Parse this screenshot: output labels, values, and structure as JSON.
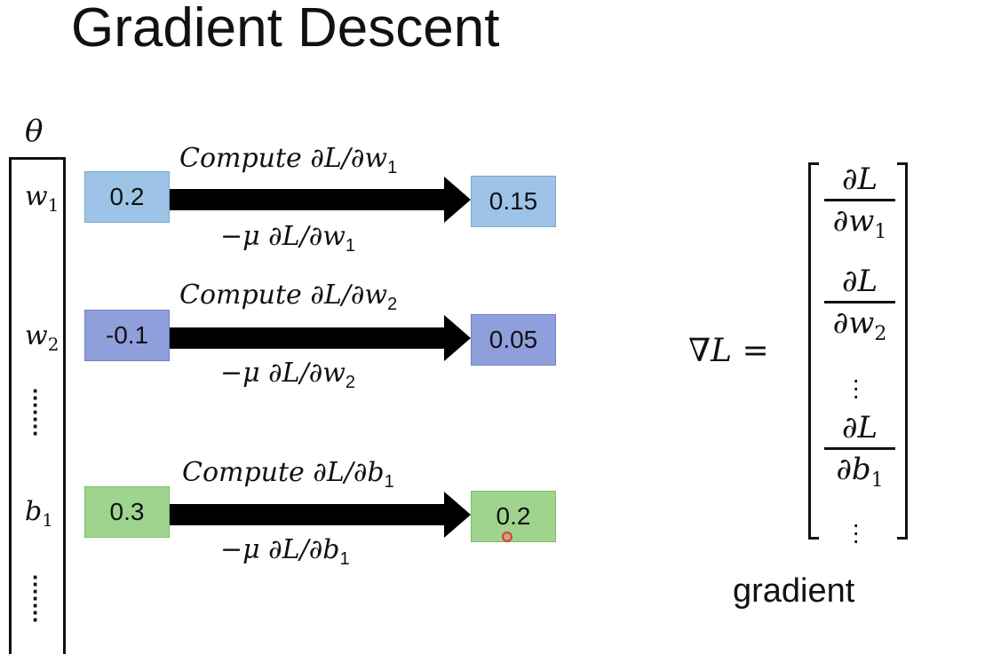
{
  "title": "Gradient Descent",
  "theta": "θ",
  "params": [
    {
      "sym": "w",
      "sub": "1"
    },
    {
      "sym": "w",
      "sub": "2"
    },
    {
      "sym": "b",
      "sub": "1"
    }
  ],
  "rows": [
    {
      "start": "0.2",
      "end": "0.15",
      "compute": "Compute ∂L/∂w",
      "compute_sub": "1",
      "update": "−μ ∂L/∂w",
      "update_sub": "1"
    },
    {
      "start": "-0.1",
      "end": "0.05",
      "compute": "Compute ∂L/∂w",
      "compute_sub": "2",
      "update": "−μ ∂L/∂w",
      "update_sub": "2"
    },
    {
      "start": "0.3",
      "end": "0.2",
      "compute": "Compute ∂L/∂b",
      "compute_sub": "1",
      "update": "−μ ∂L/∂b",
      "update_sub": "1"
    }
  ],
  "gradient": {
    "lhs": "∇L =",
    "entries": [
      {
        "num": "∂L",
        "den": "∂w",
        "sub": "1"
      },
      {
        "num": "∂L",
        "den": "∂w",
        "sub": "2"
      },
      {
        "num": "∂L",
        "den": "∂b",
        "sub": "1"
      }
    ],
    "label": "gradient"
  },
  "colors": {
    "blue_light": "#9dc3e6",
    "blue_dark": "#8f9fdc",
    "green": "#9fd48f"
  }
}
